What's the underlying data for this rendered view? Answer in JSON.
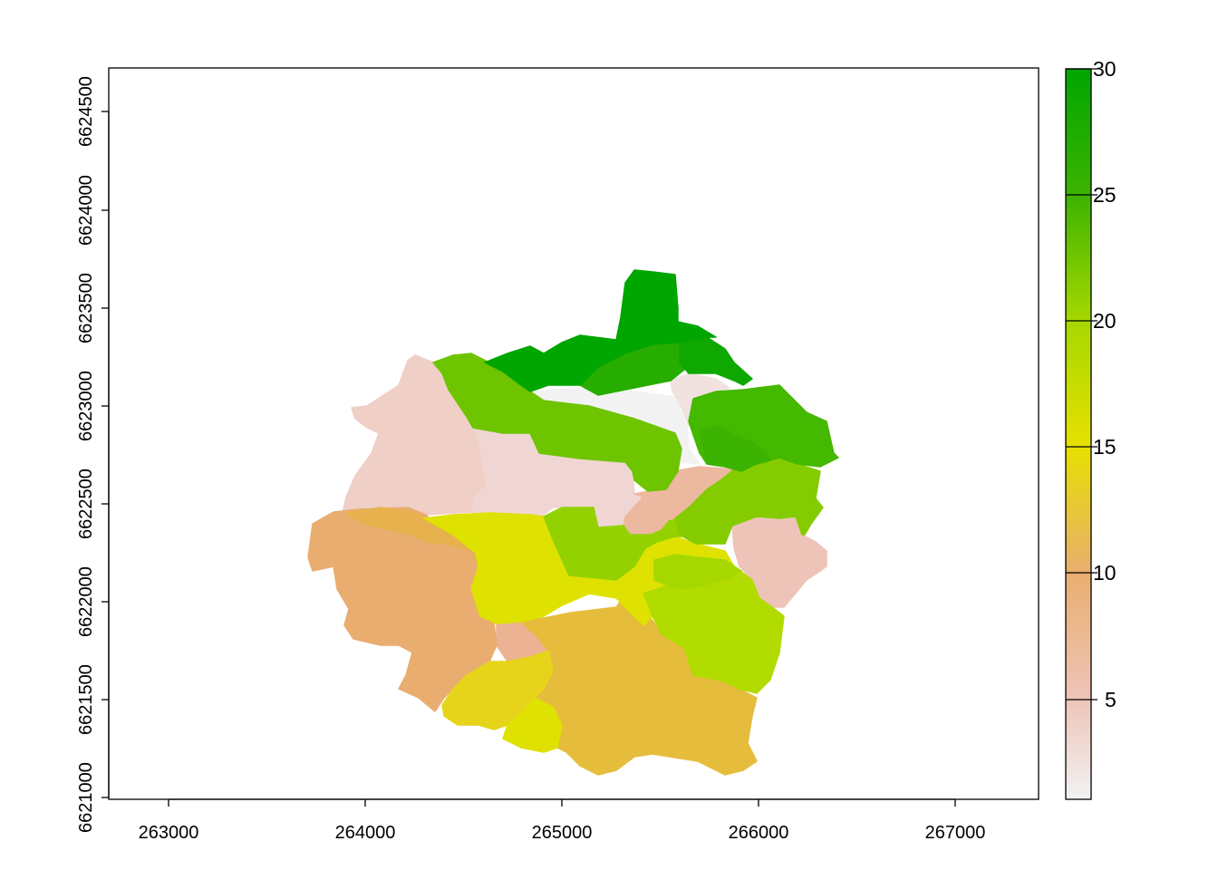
{
  "chart_data": {
    "type": "heatmap",
    "title": "",
    "xlabel": "",
    "ylabel": "",
    "x_ticks": [
      "263000",
      "264000",
      "265000",
      "266000",
      "267000"
    ],
    "y_ticks": [
      "6621000",
      "6621500",
      "6622000",
      "6622500",
      "6623000",
      "6623500",
      "6624000",
      "6624500"
    ],
    "xlim": [
      262680,
      267410
    ],
    "ylim": [
      6620990,
      6624720
    ],
    "color_scale": {
      "min": 1,
      "max": 30,
      "ticks": [
        "5",
        "10",
        "15",
        "20",
        "25",
        "30"
      ],
      "stops": [
        {
          "value": 1,
          "color": "#f2f2f2"
        },
        {
          "value": 5,
          "color": "#eec4b8"
        },
        {
          "value": 10,
          "color": "#e9ae6e"
        },
        {
          "value": 15,
          "color": "#e6e000"
        },
        {
          "value": 20,
          "color": "#a6d800"
        },
        {
          "value": 25,
          "color": "#3cb300"
        },
        {
          "value": 30,
          "color": "#00a600"
        }
      ]
    },
    "zones": [
      {
        "value": 30,
        "color": "#00a600"
      },
      {
        "value": 29,
        "color": "#0ea800"
      },
      {
        "value": 27,
        "color": "#27ad00"
      },
      {
        "value": 25,
        "color": "#3cb300"
      },
      {
        "value": 24,
        "color": "#45b800"
      },
      {
        "value": 22,
        "color": "#6fc400"
      },
      {
        "value": 21,
        "color": "#84cc00"
      },
      {
        "value": 20,
        "color": "#93d200"
      },
      {
        "value": 19,
        "color": "#a6d800"
      },
      {
        "value": 18,
        "color": "#b2db00"
      },
      {
        "value": 16,
        "color": "#dfe200"
      },
      {
        "value": 15,
        "color": "#e6d41a"
      },
      {
        "value": 12,
        "color": "#e6bc3c"
      },
      {
        "value": 11,
        "color": "#e7b24d"
      },
      {
        "value": 9,
        "color": "#e9ad70"
      },
      {
        "value": 7,
        "color": "#ebb293"
      },
      {
        "value": 6,
        "color": "#ecb9a0"
      },
      {
        "value": 5,
        "color": "#eec4b8"
      },
      {
        "value": 4,
        "color": "#efcfc6"
      },
      {
        "value": 3,
        "color": "#f0d6d2"
      },
      {
        "value": 2,
        "color": "#f1e2e0"
      },
      {
        "value": 1,
        "color": "#f2f2f2"
      }
    ]
  }
}
